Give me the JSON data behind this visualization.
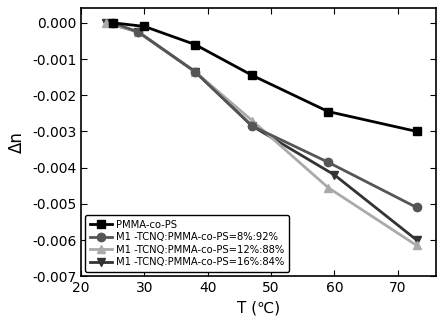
{
  "series": [
    {
      "label": "PMMA-co-PS",
      "x": [
        25,
        30,
        38,
        47,
        59,
        73
      ],
      "y": [
        0.0,
        -0.0001,
        -0.0006,
        -0.00145,
        -0.00245,
        -0.003
      ],
      "color": "#000000",
      "marker": "s",
      "linewidth": 2.0,
      "markersize": 6,
      "zorder": 5
    },
    {
      "label": "M1 -TCNQ:PMMA-co-PS=8%:92%",
      "x": [
        25,
        29,
        38,
        47,
        59,
        73
      ],
      "y": [
        0.0,
        -0.00025,
        -0.00135,
        -0.00285,
        -0.00385,
        -0.0051
      ],
      "color": "#555555",
      "marker": "o",
      "linewidth": 2.0,
      "markersize": 6,
      "zorder": 4
    },
    {
      "label": "M1 -TCNQ:PMMA-co-PS=12%:88%",
      "x": [
        24,
        29,
        38,
        47,
        59,
        73
      ],
      "y": [
        0.0,
        -0.00025,
        -0.00135,
        -0.0027,
        -0.00455,
        -0.00615
      ],
      "color": "#aaaaaa",
      "marker": "^",
      "linewidth": 2.0,
      "markersize": 6,
      "zorder": 3
    },
    {
      "label": "M1 -TCNQ:PMMA-co-PS=16%:84%",
      "x": [
        24,
        29,
        38,
        47,
        60,
        73
      ],
      "y": [
        0.0,
        -0.00025,
        -0.00135,
        -0.00285,
        -0.0042,
        -0.006
      ],
      "color": "#333333",
      "marker": "v",
      "linewidth": 2.0,
      "markersize": 6,
      "zorder": 2
    }
  ],
  "xlabel": "T (℃)",
  "ylabel": "Δn",
  "xlim": [
    20,
    76
  ],
  "ylim": [
    -0.007,
    0.0004
  ],
  "xticks": [
    20,
    30,
    40,
    50,
    60,
    70
  ],
  "yticks": [
    0.0,
    -0.001,
    -0.002,
    -0.003,
    -0.004,
    -0.005,
    -0.006,
    -0.007
  ],
  "background_color": "#ffffff",
  "legend_loc": "lower left",
  "legend_fontsize": 7.2,
  "xlabel_fontsize": 11,
  "ylabel_fontsize": 12,
  "tick_fontsize": 10
}
